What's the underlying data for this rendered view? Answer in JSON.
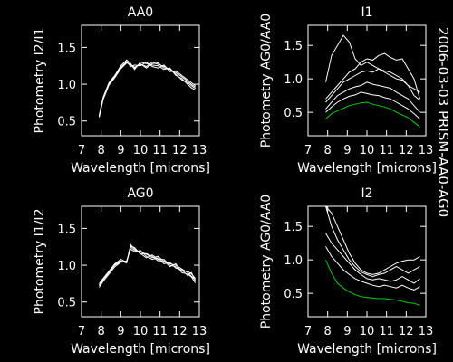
{
  "side_label": "2006-03-03 PRISM-AA0-AG0",
  "colors": {
    "background": "#000000",
    "foreground": "#ffffff",
    "highlight": "#00cc00"
  },
  "chart_data": [
    {
      "type": "line",
      "title": "AA0",
      "xlabel": "Wavelength [microns]",
      "ylabel": "Photometry I2/I1",
      "xlim": [
        7,
        13
      ],
      "ylim": [
        0.3,
        1.8
      ],
      "xticks": [
        "7",
        "8",
        "9",
        "10",
        "11",
        "12",
        "13"
      ],
      "yticks": [
        "0.5",
        "1.0",
        "1.5"
      ],
      "series": [
        {
          "color": "#ffffff",
          "x": [
            7.9,
            8.1,
            8.4,
            8.7,
            9.0,
            9.3,
            9.5,
            9.7,
            10.0,
            10.3,
            10.6,
            10.9,
            11.2,
            11.5,
            11.8,
            12.1,
            12.4,
            12.6,
            12.8
          ],
          "y": [
            0.55,
            0.8,
            1.0,
            1.1,
            1.22,
            1.3,
            1.26,
            1.22,
            1.27,
            1.24,
            1.3,
            1.27,
            1.24,
            1.2,
            1.16,
            1.1,
            1.04,
            1.0,
            0.96
          ]
        },
        {
          "color": "#ffffff",
          "x": [
            7.9,
            8.1,
            8.4,
            8.7,
            9.0,
            9.3,
            9.5,
            9.7,
            10.0,
            10.3,
            10.6,
            10.9,
            11.2,
            11.5,
            11.8,
            12.1,
            12.4,
            12.6,
            12.8
          ],
          "y": [
            0.58,
            0.82,
            1.02,
            1.12,
            1.25,
            1.33,
            1.28,
            1.2,
            1.3,
            1.28,
            1.26,
            1.25,
            1.2,
            1.22,
            1.12,
            1.08,
            1.0,
            0.95,
            0.92
          ]
        },
        {
          "color": "#ffffff",
          "x": [
            7.9,
            8.1,
            8.4,
            8.7,
            9.0,
            9.3,
            9.5,
            9.7,
            10.0,
            10.3,
            10.6,
            10.9,
            11.2,
            11.5,
            11.8,
            12.1,
            12.4,
            12.6,
            12.8
          ],
          "y": [
            0.57,
            0.81,
            1.01,
            1.11,
            1.23,
            1.31,
            1.24,
            1.26,
            1.25,
            1.3,
            1.24,
            1.22,
            1.26,
            1.17,
            1.18,
            1.12,
            1.06,
            1.02,
            0.98
          ]
        },
        {
          "color": "#ffffff",
          "x": [
            7.9,
            8.1,
            8.4,
            8.7,
            9.0,
            9.3,
            9.5,
            9.7,
            10.0,
            10.3,
            10.6,
            10.9,
            11.2,
            11.5,
            11.8,
            12.1,
            12.4,
            12.6,
            12.8
          ],
          "y": [
            0.56,
            0.79,
            0.99,
            1.09,
            1.21,
            1.29,
            1.27,
            1.23,
            1.28,
            1.22,
            1.28,
            1.29,
            1.22,
            1.21,
            1.14,
            1.06,
            1.02,
            0.98,
            0.94
          ]
        }
      ]
    },
    {
      "type": "line",
      "title": "I1",
      "xlabel": "Wavelength [microns]",
      "ylabel": "Photometry AG0/AA0",
      "xlim": [
        7,
        13
      ],
      "ylim": [
        0.15,
        1.8
      ],
      "xticks": [
        "7",
        "8",
        "9",
        "10",
        "11",
        "12",
        "13"
      ],
      "yticks": [
        "0.5",
        "1.0",
        "1.5"
      ],
      "series": [
        {
          "color": "#ffffff",
          "x": [
            7.9,
            8.2,
            8.5,
            8.8,
            9.1,
            9.4,
            9.7,
            10.0,
            10.3,
            10.6,
            10.9,
            11.2,
            11.5,
            11.8,
            12.1,
            12.4,
            12.7
          ],
          "y": [
            0.95,
            1.35,
            1.5,
            1.65,
            1.55,
            1.3,
            1.2,
            1.25,
            1.2,
            1.15,
            1.1,
            1.05,
            1.0,
            0.98,
            0.9,
            0.85,
            0.8
          ]
        },
        {
          "color": "#ffffff",
          "x": [
            7.9,
            8.2,
            8.5,
            8.8,
            9.1,
            9.4,
            9.7,
            10.0,
            10.3,
            10.6,
            10.9,
            11.2,
            11.5,
            11.8,
            12.1,
            12.4,
            12.7
          ],
          "y": [
            0.7,
            0.8,
            0.9,
            1.0,
            1.1,
            1.15,
            1.25,
            1.3,
            1.28,
            1.35,
            1.38,
            1.32,
            1.28,
            1.3,
            1.15,
            1.0,
            0.7
          ]
        },
        {
          "color": "#ffffff",
          "x": [
            7.9,
            8.2,
            8.5,
            8.8,
            9.1,
            9.4,
            9.7,
            10.0,
            10.3,
            10.6,
            10.9,
            11.2,
            11.5,
            11.8,
            12.1,
            12.4,
            12.7
          ],
          "y": [
            0.65,
            0.75,
            0.85,
            0.95,
            1.0,
            1.05,
            1.1,
            1.12,
            1.1,
            1.15,
            1.12,
            1.1,
            1.05,
            1.0,
            0.9,
            0.75,
            0.68
          ]
        },
        {
          "color": "#ffffff",
          "x": [
            7.9,
            8.2,
            8.5,
            8.8,
            9.1,
            9.4,
            9.7,
            10.0,
            10.3,
            10.6,
            10.9,
            11.2,
            11.5,
            11.8,
            12.1,
            12.4,
            12.7
          ],
          "y": [
            0.55,
            0.65,
            0.75,
            0.8,
            0.85,
            0.88,
            0.9,
            0.95,
            0.92,
            0.9,
            0.88,
            0.86,
            0.8,
            0.75,
            0.7,
            0.6,
            0.5
          ]
        },
        {
          "color": "#ffffff",
          "x": [
            7.9,
            8.2,
            8.5,
            8.8,
            9.1,
            9.4,
            9.7,
            10.0,
            10.3,
            10.6,
            10.9,
            11.2,
            11.5,
            11.8,
            12.1,
            12.4,
            12.7
          ],
          "y": [
            0.5,
            0.58,
            0.65,
            0.7,
            0.74,
            0.76,
            0.8,
            0.78,
            0.76,
            0.75,
            0.72,
            0.7,
            0.65,
            0.6,
            0.55,
            0.48,
            0.4
          ]
        },
        {
          "color": "#00cc00",
          "x": [
            7.9,
            8.2,
            8.5,
            8.8,
            9.1,
            9.4,
            9.7,
            10.0,
            10.3,
            10.6,
            10.9,
            11.2,
            11.5,
            11.8,
            12.1,
            12.4,
            12.7
          ],
          "y": [
            0.4,
            0.48,
            0.52,
            0.56,
            0.6,
            0.62,
            0.64,
            0.65,
            0.62,
            0.6,
            0.58,
            0.55,
            0.5,
            0.46,
            0.42,
            0.35,
            0.28
          ]
        }
      ]
    },
    {
      "type": "line",
      "title": "AG0",
      "xlabel": "Wavelength [microns]",
      "ylabel": "Photometry I1/I2",
      "xlim": [
        7,
        13
      ],
      "ylim": [
        0.3,
        1.8
      ],
      "xticks": [
        "7",
        "8",
        "9",
        "10",
        "11",
        "12",
        "13"
      ],
      "yticks": [
        "0.5",
        "1.0",
        "1.5"
      ],
      "series": [
        {
          "color": "#ffffff",
          "x": [
            7.9,
            8.1,
            8.4,
            8.7,
            9.0,
            9.3,
            9.5,
            9.7,
            10.0,
            10.3,
            10.6,
            10.9,
            11.2,
            11.5,
            11.8,
            12.1,
            12.4,
            12.6,
            12.8
          ],
          "y": [
            0.72,
            0.8,
            0.9,
            1.0,
            1.05,
            1.05,
            1.25,
            1.2,
            1.18,
            1.15,
            1.1,
            1.12,
            1.05,
            1.02,
            1.0,
            0.95,
            0.9,
            0.85,
            0.8
          ]
        },
        {
          "color": "#ffffff",
          "x": [
            7.9,
            8.1,
            8.4,
            8.7,
            9.0,
            9.3,
            9.5,
            9.7,
            10.0,
            10.3,
            10.6,
            10.9,
            11.2,
            11.5,
            11.8,
            12.1,
            12.4,
            12.6,
            12.8
          ],
          "y": [
            0.75,
            0.82,
            0.92,
            1.02,
            1.08,
            1.04,
            1.28,
            1.22,
            1.16,
            1.1,
            1.14,
            1.08,
            1.08,
            1.0,
            0.98,
            0.92,
            0.92,
            0.88,
            0.82
          ]
        },
        {
          "color": "#ffffff",
          "x": [
            7.9,
            8.1,
            8.4,
            8.7,
            9.0,
            9.3,
            9.5,
            9.7,
            10.0,
            10.3,
            10.6,
            10.9,
            11.2,
            11.5,
            11.8,
            12.1,
            12.4,
            12.6,
            12.8
          ],
          "y": [
            0.7,
            0.78,
            0.88,
            0.98,
            1.04,
            1.06,
            1.22,
            1.18,
            1.2,
            1.12,
            1.08,
            1.1,
            1.02,
            1.04,
            0.96,
            0.94,
            0.86,
            0.9,
            0.78
          ]
        },
        {
          "color": "#ffffff",
          "x": [
            7.9,
            8.1,
            8.4,
            8.7,
            9.0,
            9.3,
            9.5,
            9.7,
            10.0,
            10.3,
            10.6,
            10.9,
            11.2,
            11.5,
            11.8,
            12.1,
            12.4,
            12.6,
            12.8
          ],
          "y": [
            0.73,
            0.81,
            0.91,
            1.01,
            1.06,
            1.03,
            1.26,
            1.24,
            1.15,
            1.16,
            1.12,
            1.06,
            1.06,
            0.98,
            1.02,
            0.9,
            0.88,
            0.84,
            0.76
          ]
        }
      ]
    },
    {
      "type": "line",
      "title": "I2",
      "xlabel": "Wavelength [microns]",
      "ylabel": "Photometry AG0/AA0",
      "xlim": [
        7,
        13
      ],
      "ylim": [
        0.15,
        1.8
      ],
      "xticks": [
        "7",
        "8",
        "9",
        "10",
        "11",
        "12",
        "13"
      ],
      "yticks": [
        "0.5",
        "1.0",
        "1.5"
      ],
      "series": [
        {
          "color": "#ffffff",
          "x": [
            7.9,
            8.2,
            8.5,
            8.8,
            9.1,
            9.4,
            9.7,
            10.0,
            10.3,
            10.6,
            10.9,
            11.2,
            11.5,
            11.8,
            12.1,
            12.4,
            12.7
          ],
          "y": [
            1.8,
            1.7,
            1.5,
            1.3,
            1.1,
            0.95,
            0.85,
            0.8,
            0.78,
            0.8,
            0.85,
            0.9,
            0.95,
            0.98,
            1.0,
            1.0,
            1.05
          ]
        },
        {
          "color": "#ffffff",
          "x": [
            7.9,
            8.2,
            8.5,
            8.8,
            9.1,
            9.4,
            9.7,
            10.0,
            10.3,
            10.6,
            10.9,
            11.2,
            11.5,
            11.8,
            12.1,
            12.4,
            12.7
          ],
          "y": [
            1.8,
            1.5,
            1.3,
            1.15,
            1.0,
            0.9,
            0.82,
            0.78,
            0.75,
            0.78,
            0.8,
            0.85,
            0.9,
            0.85,
            0.8,
            0.85,
            0.9
          ]
        },
        {
          "color": "#ffffff",
          "x": [
            7.9,
            8.2,
            8.5,
            8.8,
            9.1,
            9.4,
            9.7,
            10.0,
            10.3,
            10.6,
            10.9,
            11.2,
            11.5,
            11.8,
            12.1,
            12.4,
            12.7
          ],
          "y": [
            1.4,
            1.25,
            1.15,
            1.05,
            0.95,
            0.85,
            0.78,
            0.72,
            0.7,
            0.72,
            0.7,
            0.68,
            0.7,
            0.75,
            0.7,
            0.65,
            0.72
          ]
        },
        {
          "color": "#ffffff",
          "x": [
            7.9,
            8.2,
            8.5,
            8.8,
            9.1,
            9.4,
            9.7,
            10.0,
            10.3,
            10.6,
            10.9,
            11.2,
            11.5,
            11.8,
            12.1,
            12.4,
            12.7
          ],
          "y": [
            1.2,
            1.05,
            0.95,
            0.85,
            0.78,
            0.72,
            0.68,
            0.65,
            0.62,
            0.6,
            0.62,
            0.6,
            0.58,
            0.62,
            0.58,
            0.55,
            0.6
          ]
        },
        {
          "color": "#00cc00",
          "x": [
            7.9,
            8.2,
            8.5,
            8.8,
            9.1,
            9.4,
            9.7,
            10.0,
            10.3,
            10.6,
            10.9,
            11.2,
            11.5,
            11.8,
            12.1,
            12.4,
            12.7
          ],
          "y": [
            1.0,
            0.8,
            0.65,
            0.58,
            0.52,
            0.48,
            0.45,
            0.44,
            0.43,
            0.42,
            0.42,
            0.41,
            0.4,
            0.38,
            0.36,
            0.35,
            0.32
          ]
        }
      ]
    }
  ]
}
